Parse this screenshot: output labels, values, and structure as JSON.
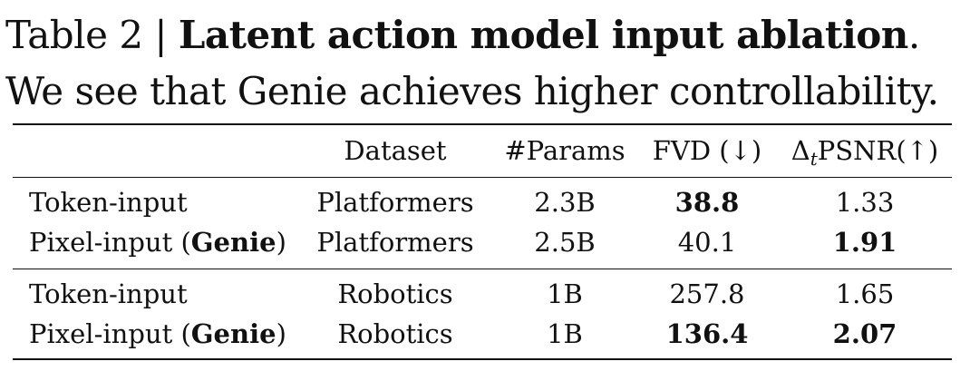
{
  "caption": {
    "label": "Table 2 | ",
    "title": "Latent action model input ablation",
    "title_end": ".",
    "text": "We see that Genie achieves higher controllability."
  },
  "table": {
    "headers": {
      "model": "",
      "dataset": "Dataset",
      "params": "#Params",
      "fvd": "FVD (↓)",
      "psnr_delta": "Δ",
      "psnr_sub": "t",
      "psnr_rest": "PSNR(↑)"
    },
    "rows": [
      {
        "model": "Token-input",
        "model_paren_open": "",
        "model_bold": "",
        "model_paren_close": "",
        "dataset": "Platformers",
        "params": "2.3B",
        "fvd": "38.8",
        "fvd_bold": true,
        "psnr": "1.33",
        "psnr_bold": false
      },
      {
        "model": "Pixel-input ",
        "model_paren_open": "(",
        "model_bold": "Genie",
        "model_paren_close": ")",
        "dataset": "Platformers",
        "params": "2.5B",
        "fvd": "40.1",
        "fvd_bold": false,
        "psnr": "1.91",
        "psnr_bold": true
      },
      {
        "model": "Token-input",
        "model_paren_open": "",
        "model_bold": "",
        "model_paren_close": "",
        "dataset": "Robotics",
        "params": "1B",
        "fvd": "257.8",
        "fvd_bold": false,
        "psnr": "1.65",
        "psnr_bold": false
      },
      {
        "model": "Pixel-input ",
        "model_paren_open": "(",
        "model_bold": "Genie",
        "model_paren_close": ")",
        "dataset": "Robotics",
        "params": "1B",
        "fvd": "136.4",
        "fvd_bold": true,
        "psnr": "2.07",
        "psnr_bold": true
      }
    ]
  }
}
